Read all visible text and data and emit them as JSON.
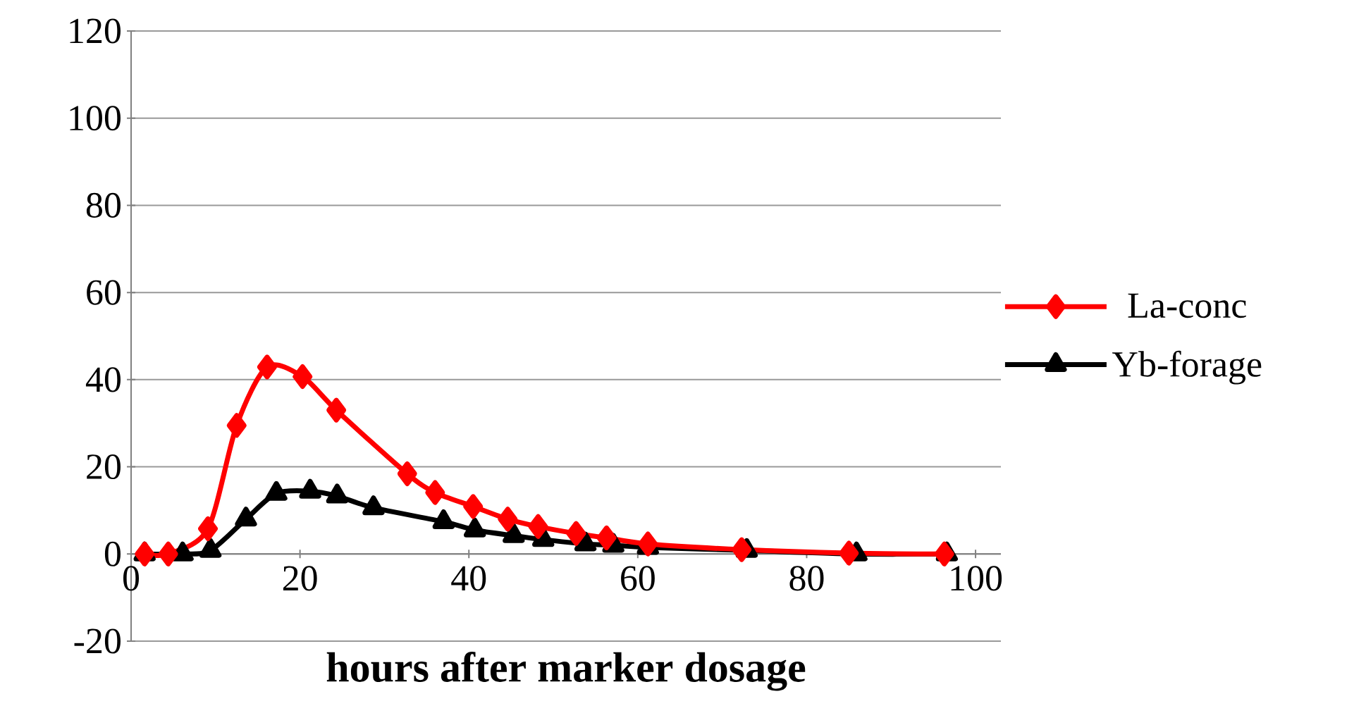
{
  "chart_data": {
    "type": "line",
    "xlabel": "hours after marker dosage",
    "xlim": [
      0,
      103
    ],
    "xticks": [
      0,
      20,
      40,
      60,
      80,
      100
    ],
    "ylim": [
      -20,
      120
    ],
    "yticks": [
      -20,
      0,
      20,
      40,
      60,
      80,
      100,
      120
    ],
    "grid": "y",
    "legend": "right",
    "series": [
      {
        "name": "La-conc",
        "color": "#ff0000",
        "marker": "diamond",
        "x": [
          1.6,
          4.4,
          9.1,
          12.5,
          16.1,
          20.3,
          24.3,
          32.7,
          36,
          40.5,
          44.6,
          48.2,
          52.7,
          56.3,
          61.2,
          72.3,
          85,
          96.3
        ],
        "values": [
          0,
          0,
          5.8,
          29.5,
          42.9,
          40.7,
          33,
          18.4,
          14.1,
          10.9,
          8,
          6.3,
          4.7,
          3.7,
          2.3,
          1.0,
          0.2,
          0
        ]
      },
      {
        "name": "Yb-forage",
        "color": "#000000",
        "marker": "triangle",
        "x": [
          1.6,
          6.1,
          9.4,
          13.6,
          17.2,
          21.2,
          24.4,
          28.7,
          37,
          40.7,
          45.3,
          48.8,
          53.8,
          57.1,
          61.2,
          72.9,
          85.9,
          96.6
        ],
        "values": [
          0,
          0,
          0.8,
          8,
          13.9,
          14.4,
          13.3,
          10.6,
          7.4,
          5.5,
          4.2,
          3.3,
          2.3,
          2,
          1.5,
          0.8,
          0,
          0
        ]
      }
    ]
  }
}
